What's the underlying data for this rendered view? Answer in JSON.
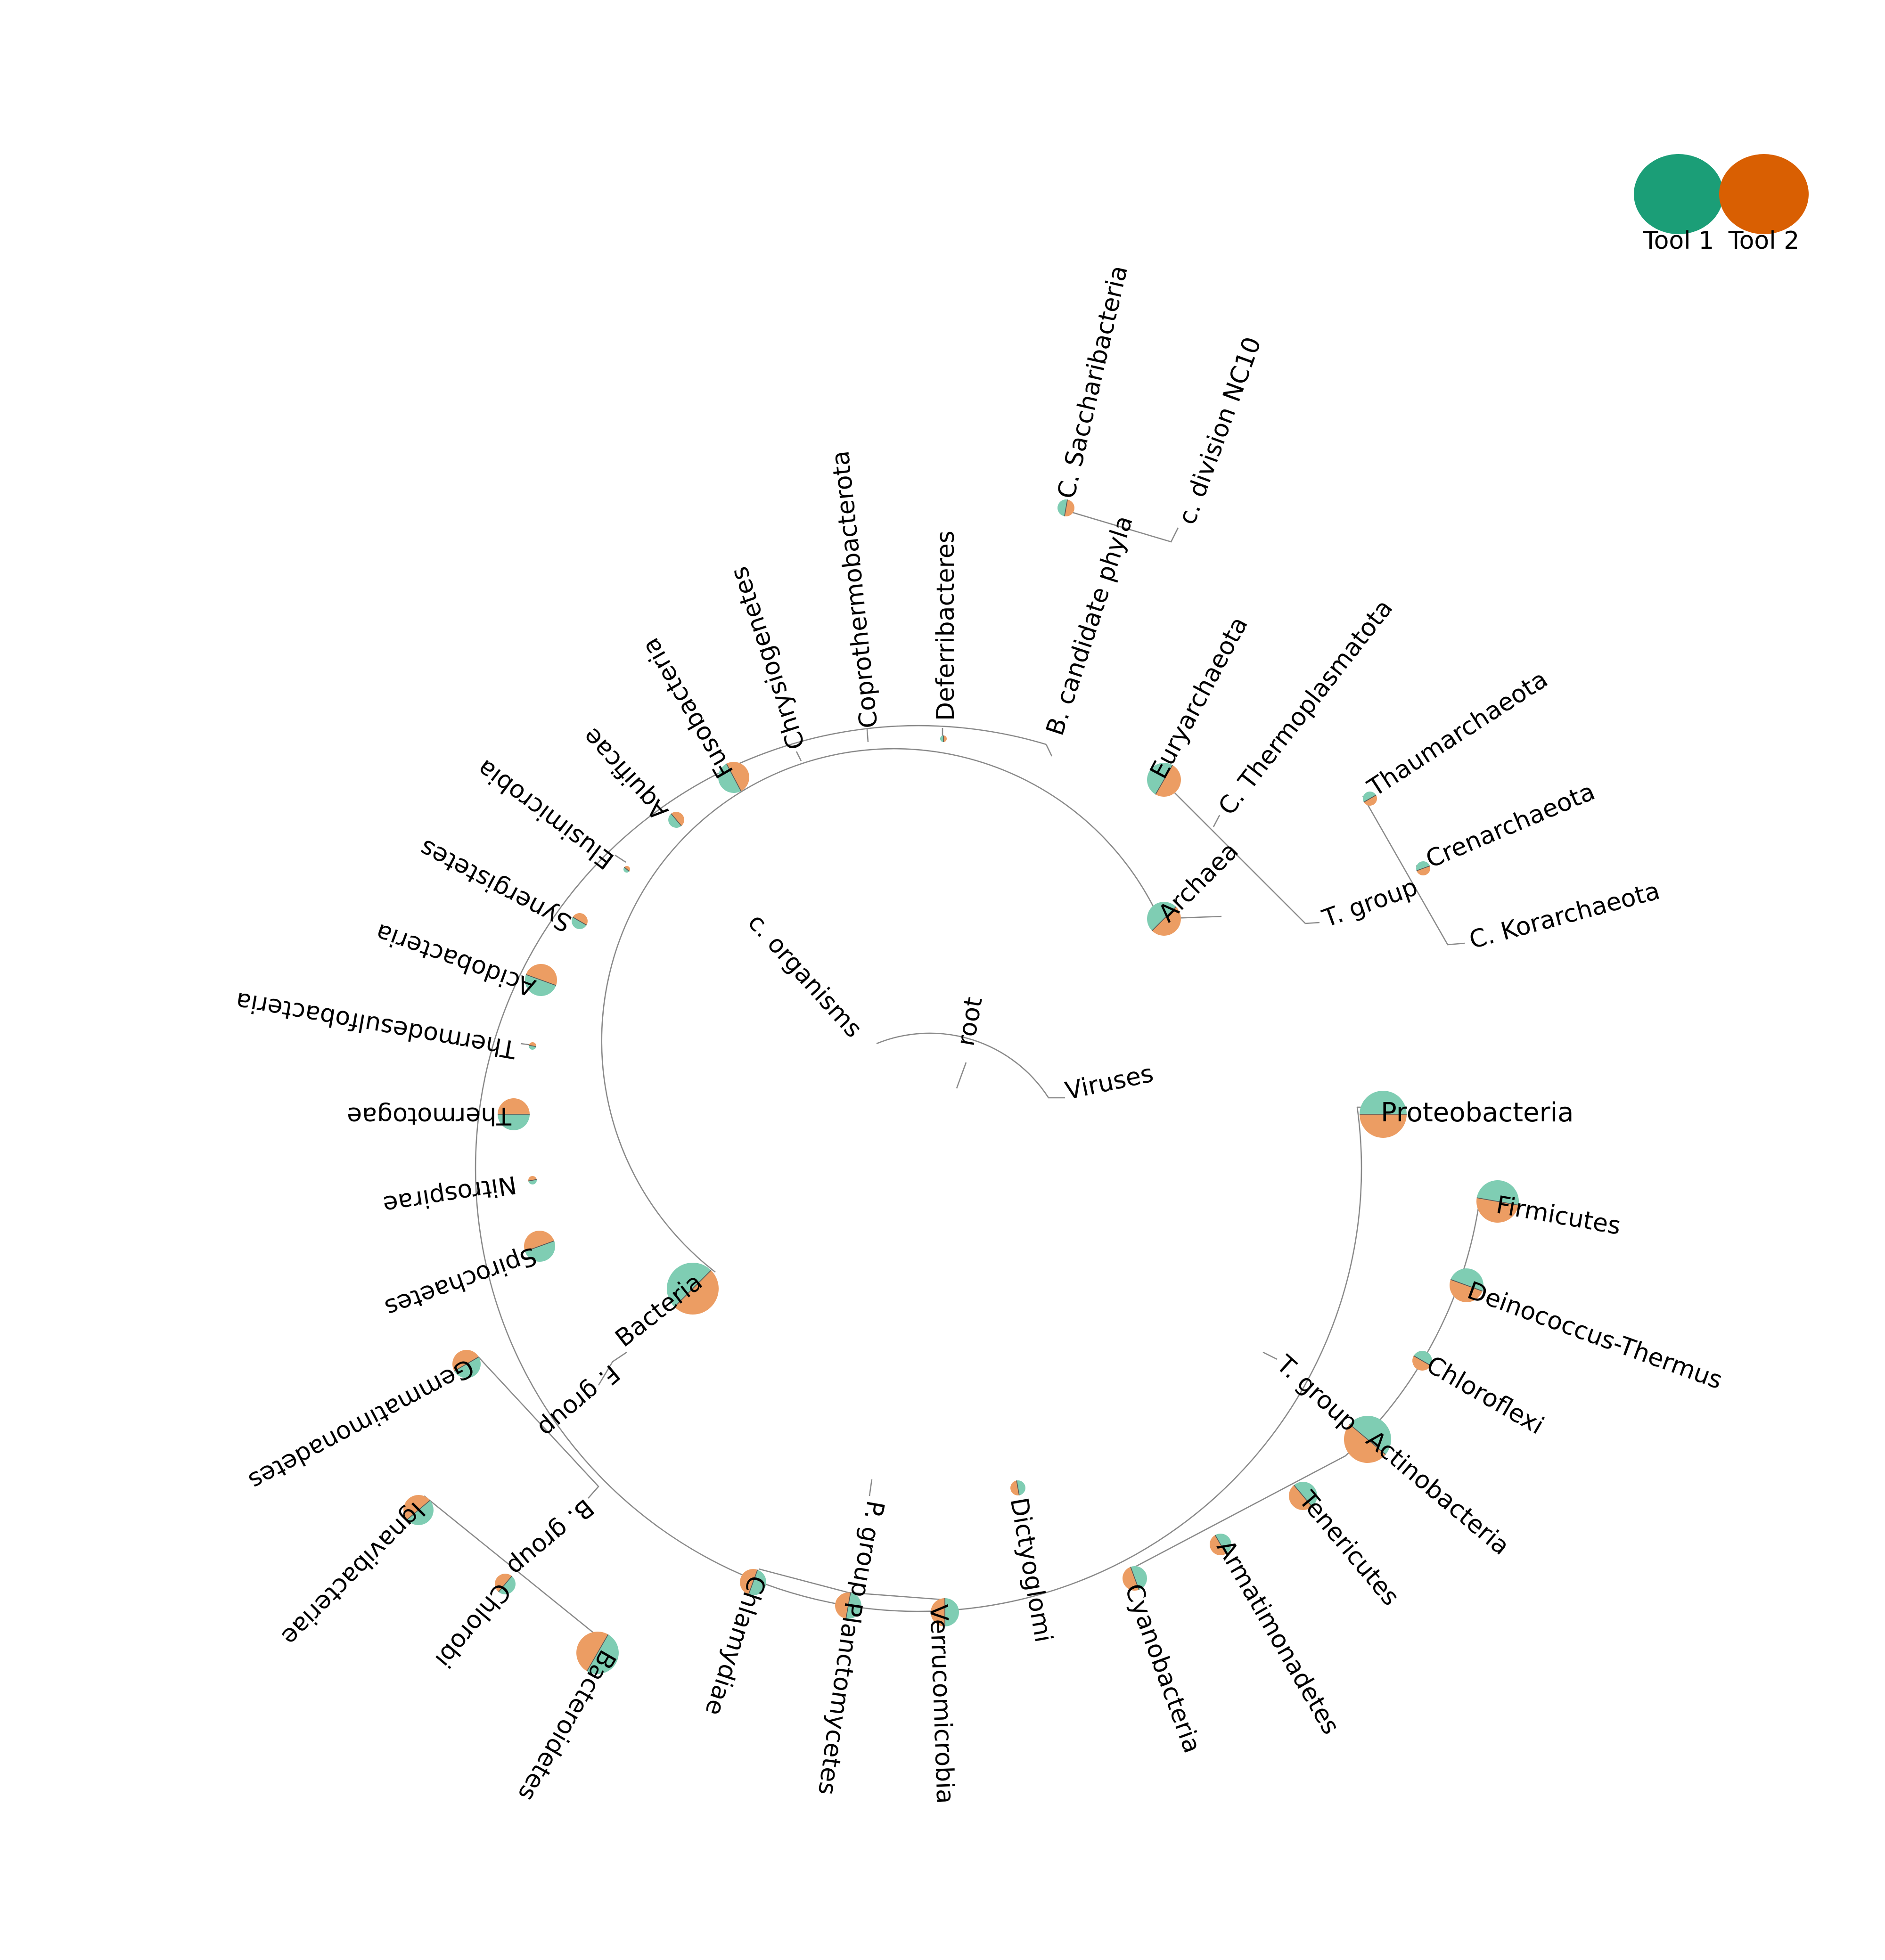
{
  "colors": {
    "tool1": "#1b9e77",
    "tool2": "#d95f02",
    "tool1_pie": "#7fcdb3",
    "tool2_pie": "#ec9d63",
    "branch": "#8a8a8a"
  },
  "legend": [
    {
      "label": "Tool 1",
      "color": "#1b9e77"
    },
    {
      "label": "Tool 2",
      "color": "#d95f02"
    }
  ],
  "tree": {
    "root": "root",
    "cellular_organisms": "c. organisms",
    "viruses": "Viruses",
    "archaea": "Archaea",
    "bacteria": "Bacteria",
    "euryarchaeota": "Euryarchaeota",
    "thermoplasmatota": "C. Thermoplasmatota",
    "tack_group": "T. group",
    "thaumarchaeota": "Thaumarchaeota",
    "crenarchaeota": "Crenarchaeota",
    "korarchaeota": "C. Korarchaeota",
    "candidate_phyla": "B. candidate phyla",
    "saccharibacteria": "C. Saccharibacteria",
    "nc10": "c. division NC10",
    "deferribacteres": "Deferribacteres",
    "coprothermobacterota": "Coprothermobacterota",
    "chrysiogenetes": "Chrysiogenetes",
    "fusobacteria": "Fusobacteria",
    "aquificae": "Aquificae",
    "elusimicrobia": "Elusimicrobia",
    "synergistetes": "Synergistetes",
    "acidobacteria": "Acidobacteria",
    "thermodesulfobacteria": "Thermodesulfobacteria",
    "thermotogae": "Thermotogae",
    "nitrospirae": "Nitrospirae",
    "spirochaetes": "Spirochaetes",
    "fcb_group": "F. group",
    "gemmatimonadetes": "Gemmatimonadetes",
    "bacteroidetes_chlorobi_group": "B. group",
    "ignavibacteriae": "Ignavibacteriae",
    "chlorobi": "Chlorobi",
    "bacteroidetes": "Bacteroidetes",
    "pvc_group": "P. group",
    "chlamydiae": "Chlamydiae",
    "planctomycetes": "Planctomycetes",
    "verrucomicrobia": "Verrucomicrobia",
    "dictyoglomi": "Dictyoglomi",
    "terrabacteria_group": "T. group",
    "cyanobacteria": "Cyanobacteria",
    "armatimonadetes": "Armatimonadetes",
    "tenericutes": "Tenericutes",
    "actinobacteria": "Actinobacteria",
    "chloroflexi": "Chloroflexi",
    "deinococcus_thermus": "Deinococcus-Thermus",
    "firmicutes": "Firmicutes",
    "proteobacteria": "Proteobacteria"
  }
}
